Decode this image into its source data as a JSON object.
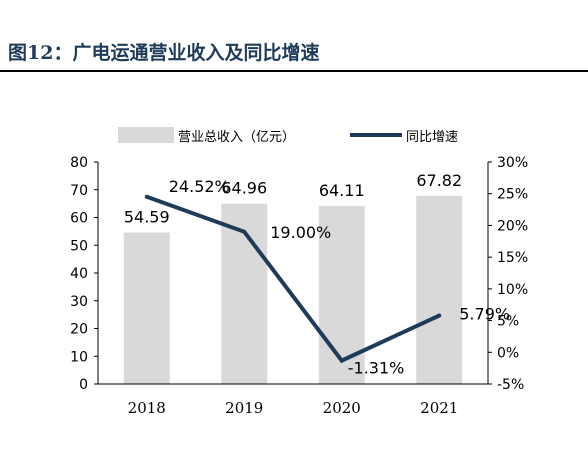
{
  "figure_title": "图12：广电运通营业收入及同比增速",
  "colors": {
    "bar": "#d9d9d9",
    "line": "#1f3b5a",
    "title": "#1f3b5a",
    "text": "#000000"
  },
  "chart_data": {
    "type": "bar",
    "categories": [
      "2018",
      "2019",
      "2020",
      "2021"
    ],
    "series": [
      {
        "name": "营业总收入（亿元）",
        "type": "bar",
        "axis": "left",
        "values": [
          54.59,
          64.96,
          64.11,
          67.82
        ],
        "labels": [
          "54.59",
          "64.96",
          "64.11",
          "67.82"
        ]
      },
      {
        "name": "同比增速",
        "type": "line",
        "axis": "right",
        "values": [
          24.52,
          19.0,
          -1.31,
          5.79
        ],
        "labels": [
          "24.52%",
          "19.00%",
          "-1.31%",
          "5.79%"
        ]
      }
    ],
    "left_axis": {
      "ylim": [
        0,
        80
      ],
      "ticks": [
        "0",
        "10",
        "20",
        "30",
        "40",
        "50",
        "60",
        "70",
        "80"
      ]
    },
    "right_axis": {
      "ylim": [
        -5,
        30
      ],
      "ticks": [
        "-5%",
        "0%",
        "5%",
        "10%",
        "15%",
        "20%",
        "25%",
        "30%"
      ]
    },
    "legend_position": "top",
    "grid": false
  }
}
